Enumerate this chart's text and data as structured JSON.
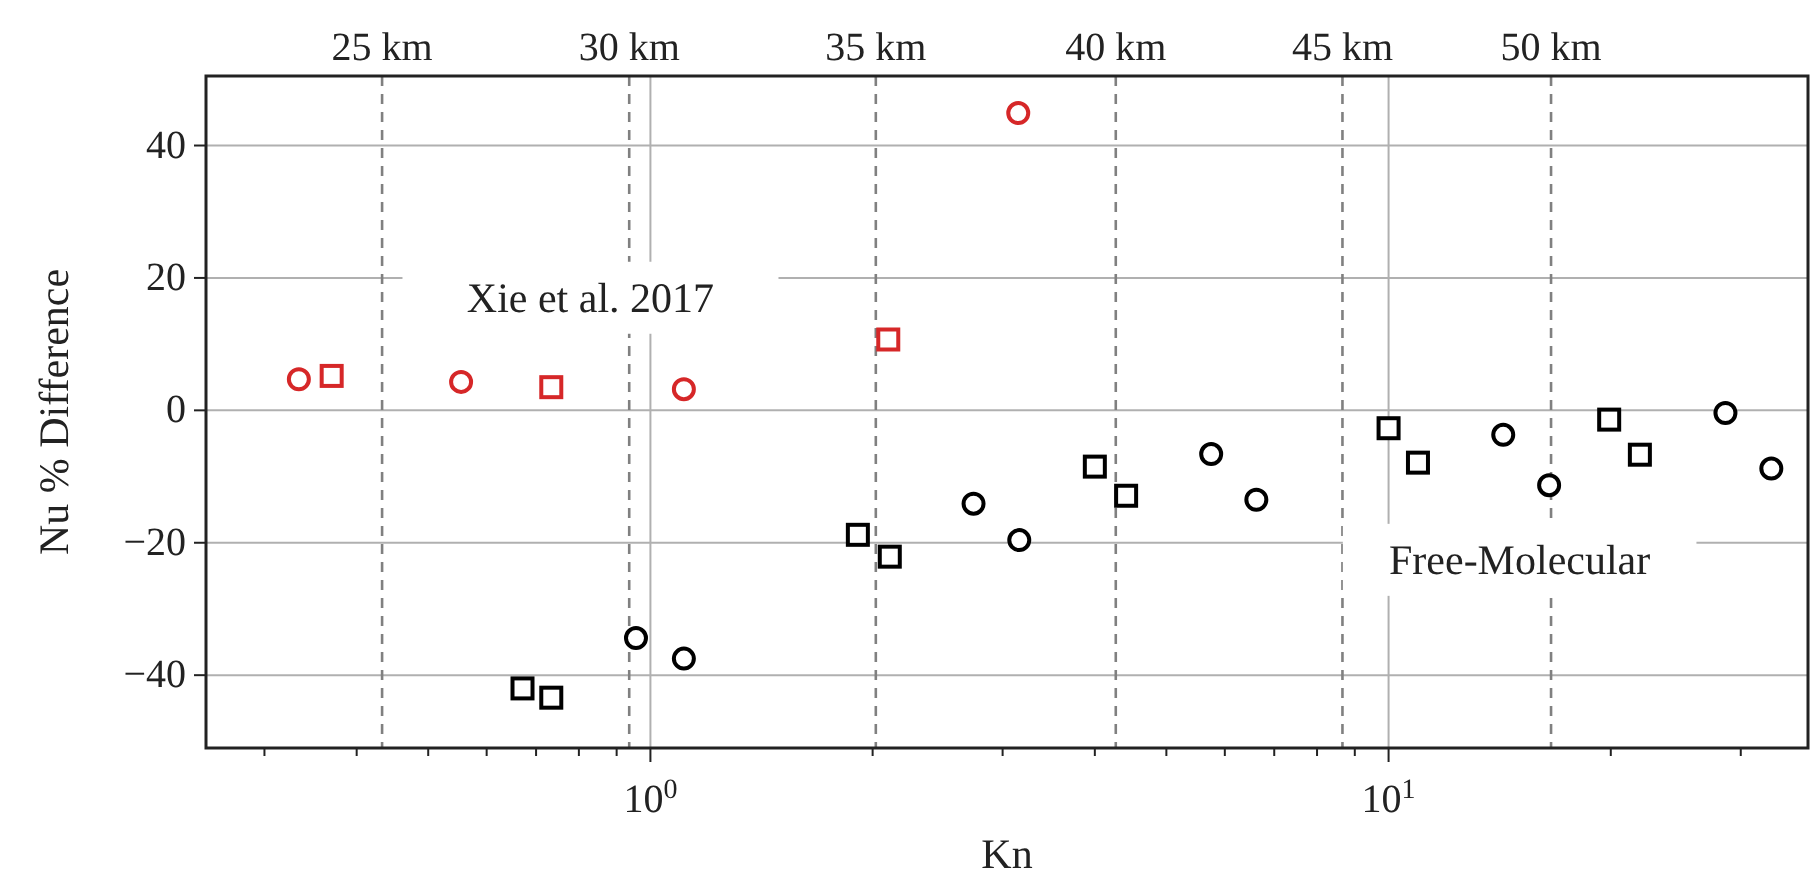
{
  "chart_data": {
    "type": "scatter",
    "xlabel": "Kn",
    "ylabel": "Nu % Difference",
    "log": "x",
    "grid": true,
    "xlim": [
      0.25,
      37
    ],
    "ylim": [
      -51,
      50.5
    ],
    "xticks": [
      {
        "value": 0.3,
        "label": null
      },
      {
        "value": 0.4,
        "label": null
      },
      {
        "value": 0.5,
        "label": null
      },
      {
        "value": 0.6,
        "label": null
      },
      {
        "value": 0.7,
        "label": null
      },
      {
        "value": 0.8,
        "label": null
      },
      {
        "value": 0.9,
        "label": null
      },
      {
        "value": 1,
        "label": "10$^{0}$"
      },
      {
        "value": 2,
        "label": null
      },
      {
        "value": 3,
        "label": null
      },
      {
        "value": 4,
        "label": null
      },
      {
        "value": 5,
        "label": null
      },
      {
        "value": 6,
        "label": null
      },
      {
        "value": 7,
        "label": null
      },
      {
        "value": 8,
        "label": null
      },
      {
        "value": 9,
        "label": null
      },
      {
        "value": 10,
        "label": "10$^{1}$"
      },
      {
        "value": 20,
        "label": null
      },
      {
        "value": 30,
        "label": null
      }
    ],
    "yticks": [
      {
        "value": -40,
        "label": "−40"
      },
      {
        "value": -20,
        "label": "−20"
      },
      0,
      20,
      40
    ],
    "ref_lines": [
      {
        "axis": "x",
        "value": 0.433,
        "label": "25 km",
        "line_style": "dashed",
        "color": "#808080"
      },
      {
        "axis": "x",
        "value": 0.936,
        "label": "30 km",
        "line_style": "dashed",
        "color": "#808080"
      },
      {
        "axis": "x",
        "value": 2.02,
        "label": "35 km",
        "line_style": "dashed",
        "color": "#808080"
      },
      {
        "axis": "x",
        "value": 4.27,
        "label": "40 km",
        "line_style": "dashed",
        "color": "#808080"
      },
      {
        "axis": "x",
        "value": 8.66,
        "label": "45 km",
        "line_style": "dashed",
        "color": "#808080"
      },
      {
        "axis": "x",
        "value": 16.6,
        "label": "50 km",
        "line_style": "dashed",
        "color": "#808080"
      }
    ],
    "annotations": [
      "Xie et al. 2017",
      "Free-Molecular"
    ],
    "series": [
      {
        "color": "#d62728",
        "marker": "circle",
        "x": [
          0.334,
          0.554,
          1.11,
          3.15
        ],
        "values": [
          4.7,
          4.3,
          3.2,
          44.9
        ]
      },
      {
        "color": "#d62728",
        "marker": "square",
        "x": [
          0.37,
          0.734,
          2.1
        ],
        "values": [
          5.2,
          3.5,
          10.7
        ]
      },
      {
        "color": "#000000",
        "marker": "square",
        "x": [
          0.671,
          1.91,
          4.0,
          10.0,
          19.9
        ],
        "values": [
          -42.0,
          -18.8,
          -8.5,
          -2.7,
          -1.4
        ]
      },
      {
        "color": "#000000",
        "marker": "square",
        "x": [
          0.734,
          2.11,
          4.41,
          10.96,
          21.9
        ],
        "values": [
          -43.4,
          -22.1,
          -12.9,
          -7.9,
          -6.7
        ]
      },
      {
        "color": "#000000",
        "marker": "circle",
        "x": [
          0.956,
          2.74,
          5.75,
          14.3,
          28.6
        ],
        "values": [
          -34.4,
          -14.1,
          -6.6,
          -3.7,
          -0.4
        ]
      },
      {
        "color": "#000000",
        "marker": "circle",
        "x": [
          1.11,
          3.16,
          6.62,
          16.5,
          33.0
        ],
        "values": [
          -37.5,
          -19.6,
          -13.5,
          -11.3,
          -8.8
        ]
      }
    ]
  }
}
